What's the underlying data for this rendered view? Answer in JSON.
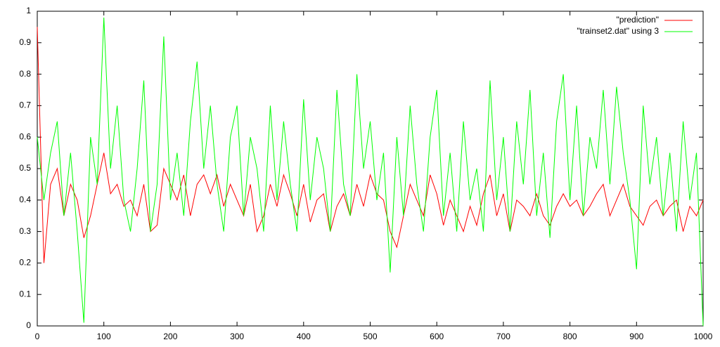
{
  "chart_data": {
    "type": "line",
    "x": [
      0,
      10,
      20,
      30,
      40,
      50,
      60,
      70,
      80,
      90,
      100,
      110,
      120,
      130,
      140,
      150,
      160,
      170,
      180,
      190,
      200,
      210,
      220,
      230,
      240,
      250,
      260,
      270,
      280,
      290,
      300,
      310,
      320,
      330,
      340,
      350,
      360,
      370,
      380,
      390,
      400,
      410,
      420,
      430,
      440,
      450,
      460,
      470,
      480,
      490,
      500,
      510,
      520,
      530,
      540,
      550,
      560,
      570,
      580,
      590,
      600,
      610,
      620,
      630,
      640,
      650,
      660,
      670,
      680,
      690,
      700,
      710,
      720,
      730,
      740,
      750,
      760,
      770,
      780,
      790,
      800,
      810,
      820,
      830,
      840,
      850,
      860,
      870,
      880,
      890,
      900,
      910,
      920,
      930,
      940,
      950,
      960,
      970,
      980,
      990,
      1000
    ],
    "series": [
      {
        "name": "\"prediction\"",
        "color": "#ff0000",
        "values": [
          0.95,
          0.2,
          0.45,
          0.5,
          0.35,
          0.45,
          0.4,
          0.28,
          0.35,
          0.45,
          0.55,
          0.42,
          0.45,
          0.38,
          0.4,
          0.35,
          0.45,
          0.3,
          0.32,
          0.5,
          0.45,
          0.4,
          0.48,
          0.35,
          0.45,
          0.48,
          0.42,
          0.48,
          0.38,
          0.45,
          0.4,
          0.35,
          0.45,
          0.3,
          0.35,
          0.45,
          0.38,
          0.48,
          0.42,
          0.35,
          0.45,
          0.33,
          0.4,
          0.42,
          0.3,
          0.38,
          0.42,
          0.35,
          0.45,
          0.38,
          0.48,
          0.42,
          0.4,
          0.3,
          0.25,
          0.35,
          0.45,
          0.4,
          0.35,
          0.48,
          0.42,
          0.32,
          0.4,
          0.35,
          0.3,
          0.38,
          0.32,
          0.42,
          0.48,
          0.35,
          0.42,
          0.3,
          0.4,
          0.38,
          0.35,
          0.42,
          0.35,
          0.32,
          0.38,
          0.42,
          0.38,
          0.4,
          0.35,
          0.38,
          0.42,
          0.45,
          0.35,
          0.4,
          0.45,
          0.38,
          0.35,
          0.32,
          0.38,
          0.4,
          0.35,
          0.38,
          0.4,
          0.3,
          0.38,
          0.35,
          0.4
        ]
      },
      {
        "name": "\"trainset2.dat\" using 3",
        "color": "#00ff00",
        "values": [
          0.6,
          0.4,
          0.55,
          0.65,
          0.35,
          0.55,
          0.3,
          0.01,
          0.6,
          0.45,
          0.98,
          0.5,
          0.7,
          0.4,
          0.3,
          0.5,
          0.78,
          0.3,
          0.45,
          0.92,
          0.4,
          0.55,
          0.35,
          0.65,
          0.84,
          0.5,
          0.7,
          0.45,
          0.3,
          0.6,
          0.7,
          0.35,
          0.6,
          0.5,
          0.3,
          0.7,
          0.4,
          0.65,
          0.45,
          0.3,
          0.72,
          0.4,
          0.6,
          0.5,
          0.3,
          0.75,
          0.45,
          0.35,
          0.8,
          0.5,
          0.65,
          0.4,
          0.55,
          0.17,
          0.6,
          0.35,
          0.7,
          0.45,
          0.3,
          0.6,
          0.75,
          0.35,
          0.55,
          0.3,
          0.65,
          0.4,
          0.5,
          0.3,
          0.78,
          0.4,
          0.6,
          0.3,
          0.65,
          0.45,
          0.75,
          0.35,
          0.55,
          0.28,
          0.65,
          0.8,
          0.4,
          0.7,
          0.35,
          0.6,
          0.5,
          0.75,
          0.45,
          0.76,
          0.55,
          0.4,
          0.18,
          0.7,
          0.45,
          0.6,
          0.35,
          0.55,
          0.3,
          0.65,
          0.4,
          0.55,
          0.0
        ]
      }
    ],
    "xlim": [
      0,
      1000
    ],
    "xticks": [
      0,
      100,
      200,
      300,
      400,
      500,
      600,
      700,
      800,
      900,
      1000
    ],
    "ylim": [
      0,
      1
    ],
    "yticks": [
      0,
      0.1,
      0.2,
      0.3,
      0.4,
      0.5,
      0.6,
      0.7,
      0.8,
      0.9,
      1
    ],
    "legend": "upper-right"
  }
}
